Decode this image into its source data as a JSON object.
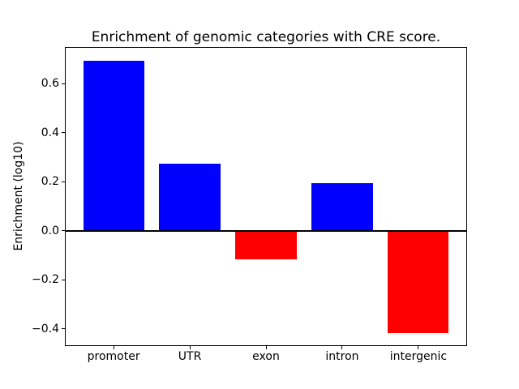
{
  "figure": {
    "background": "#ffffff"
  },
  "chart_data": {
    "type": "bar",
    "title": "Enrichment of genomic categories with CRE score.",
    "xlabel": "",
    "ylabel": "Enrichment (log10)",
    "categories": [
      "promoter",
      "UTR",
      "exon",
      "intron",
      "intergenic"
    ],
    "values": [
      0.695,
      0.273,
      -0.115,
      0.193,
      -0.418
    ],
    "colors": [
      "#0000ff",
      "#0000ff",
      "#ff0000",
      "#0000ff",
      "#ff0000"
    ],
    "positive_color": "#0000ff",
    "negative_color": "#ff0000",
    "yticks": [
      -0.4,
      -0.2,
      0.0,
      0.2,
      0.4,
      0.6
    ],
    "ytick_labels": [
      "−0.4",
      "−0.2",
      "0.0",
      "0.2",
      "0.4",
      "0.6"
    ],
    "ylim": [
      -0.47,
      0.75
    ],
    "zero_line": true,
    "grid": false,
    "legend": null
  }
}
